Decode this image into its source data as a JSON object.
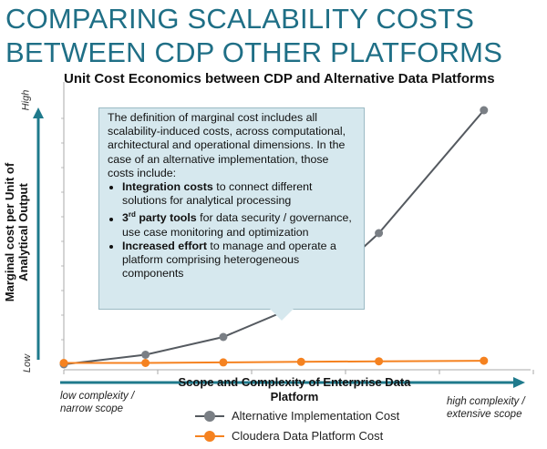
{
  "page": {
    "title": "COMPARING SCALABILITY COSTS BETWEEN CDP OTHER PLATFORMS"
  },
  "callout": {
    "intro": "The definition of marginal cost includes all scalability-induced costs, across computational, architectural and operational dimensions. In the case of an alternative implementation, those costs include:",
    "bullets": [
      {
        "bold": "Integration costs",
        "rest": " to connect different solutions for analytical processing"
      },
      {
        "bold": "3",
        "sup": "rd",
        "bold2": " party tools",
        "rest": " for data security / governance, use case monitoring and optimization"
      },
      {
        "bold": "Increased effort",
        "rest": " to manage and operate a platform comprising heterogeneous components"
      }
    ]
  },
  "chart_data": {
    "type": "line",
    "title": "Unit Cost Economics between CDP and Alternative Data Platforms",
    "xlabel": "Scope and Complexity of Enterprise Data Platform",
    "ylabel": "Marginal cost per Unit of Analytical Output",
    "y_high_label": "High",
    "y_low_label": "Low",
    "x_low_label": "low complexity / narrow scope",
    "x_high_label": "high complexity / extensive scope",
    "x": [
      0,
      1,
      2,
      3,
      4,
      5,
      6
    ],
    "xlim": [
      0,
      6
    ],
    "ylim": [
      0,
      10
    ],
    "grid": false,
    "series": [
      {
        "name": "Alternative Implementation Cost",
        "color": "#555a60",
        "values": [
          0.0,
          0.35,
          1.0,
          2.2,
          4.8,
          9.3
        ]
      },
      {
        "name": "Cloudera Data Platform Cost",
        "color": "#f58220",
        "values": [
          0.05,
          0.05,
          0.07,
          0.09,
          0.11,
          0.13
        ]
      }
    ],
    "x_values": [
      0,
      1.05,
      2.05,
      3.05,
      4.05,
      5.4
    ]
  },
  "colors": {
    "accent": "#1f6f86",
    "axis": "#1f7a8c"
  }
}
